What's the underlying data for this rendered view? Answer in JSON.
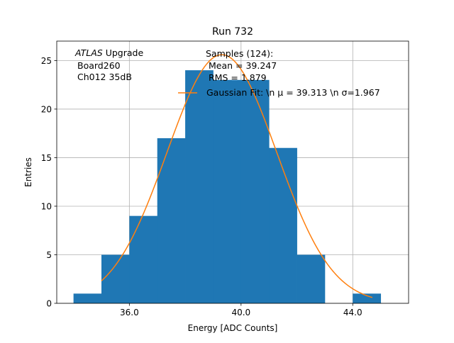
{
  "chart_data": {
    "type": "histogram",
    "title": "Run 732",
    "xlabel": "Energy [ADC Counts]",
    "ylabel": "Entries",
    "xlim": [
      33.4,
      46.0
    ],
    "ylim": [
      0,
      27
    ],
    "grid": true,
    "x_ticks": [
      {
        "value": 36,
        "label": "36.0"
      },
      {
        "value": 40,
        "label": "40.0"
      },
      {
        "value": 44,
        "label": "44.0"
      }
    ],
    "y_ticks": [
      {
        "value": 0,
        "label": "0"
      },
      {
        "value": 5,
        "label": "5"
      },
      {
        "value": 10,
        "label": "10"
      },
      {
        "value": 15,
        "label": "15"
      },
      {
        "value": 20,
        "label": "20"
      },
      {
        "value": 25,
        "label": "25"
      }
    ],
    "bins": [
      {
        "x0": 34.0,
        "x1": 35.0,
        "count": 1
      },
      {
        "x0": 35.0,
        "x1": 36.0,
        "count": 5
      },
      {
        "x0": 36.0,
        "x1": 37.0,
        "count": 9
      },
      {
        "x0": 37.0,
        "x1": 38.0,
        "count": 17
      },
      {
        "x0": 38.0,
        "x1": 39.0,
        "count": 24
      },
      {
        "x0": 39.0,
        "x1": 40.0,
        "count": 23
      },
      {
        "x0": 40.0,
        "x1": 41.0,
        "count": 23
      },
      {
        "x0": 41.0,
        "x1": 42.0,
        "count": 16
      },
      {
        "x0": 42.0,
        "x1": 43.0,
        "count": 5
      },
      {
        "x0": 43.0,
        "x1": 44.0,
        "count": 0
      },
      {
        "x0": 44.0,
        "x1": 45.0,
        "count": 1
      }
    ],
    "bar_color": "#1f77b4",
    "fit": {
      "mu": 39.313,
      "sigma": 1.967,
      "amplitude": 25.6,
      "x_range": [
        35.0,
        44.7
      ],
      "color": "#ff7f0e"
    },
    "legend_placement": "top-right",
    "legend": {
      "samples_title": "Samples (124):",
      "mean_line": "Mean = 39.247",
      "rms_line": "RMS = 1.879",
      "fit_label": "Gaussian Fit: \\n μ = 39.313 \\n σ=1.967"
    },
    "annotation": {
      "atlas": "ATLAS",
      "upgrade": " Upgrade",
      "board": "Board260",
      "channel": "Ch012 35dB"
    }
  }
}
